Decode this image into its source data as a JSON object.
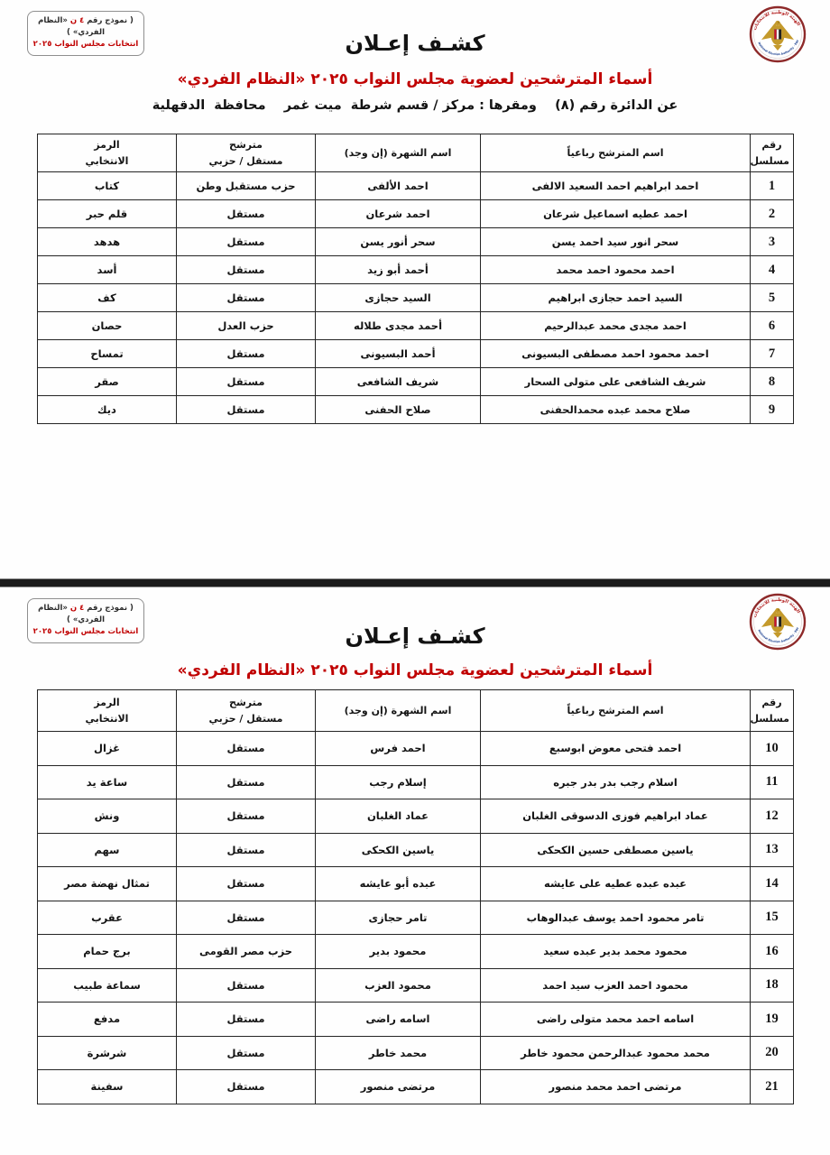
{
  "colors": {
    "accent_red": "#c00000",
    "table_border": "#242424",
    "divider": "#1b1b1b"
  },
  "header": {
    "form_box": {
      "line1_prefix": "( نموذج رقم ",
      "line1_red": "٤ ن",
      "line1_suffix": " «النظام الفردي» )",
      "line2": "انتخابات مجلس النواب ٢٠٢٥"
    },
    "logo_name": "national-elections-authority-emblem",
    "title": "كشـف إعـلان",
    "subtitle": "أسماء المترشحين لعضوية مجلس النواب ٢٠٢٥ «النظام الفردي»",
    "district_line": "عن الدائرة رقم (٨)    ومقرها : مركز / قسم شرطة  ميت غمر    محافظة  الدقهلية"
  },
  "table": {
    "columns": [
      "رقم\nمسلسل",
      "اسم المترشح رباعياً",
      "اسم الشهرة (إن وجد)",
      "مترشح\nمستقل / حزبي",
      "الرمز\nالانتخابي"
    ]
  },
  "pages": [
    {
      "rows": [
        {
          "serial": "1",
          "name": "احمد ابراهيم احمد السعيد الالفى",
          "known_as": "احمد الألفى",
          "affiliation": "حزب مستقبل وطن",
          "symbol": "كتاب"
        },
        {
          "serial": "2",
          "name": "احمد عطيه اسماعيل شرعان",
          "known_as": "احمد شرعان",
          "affiliation": "مستقل",
          "symbol": "قلم حبر"
        },
        {
          "serial": "3",
          "name": "سحر انور سيد احمد يسن",
          "known_as": "سحر أنور يسن",
          "affiliation": "مستقل",
          "symbol": "هدهد"
        },
        {
          "serial": "4",
          "name": "احمد محمود احمد محمد",
          "known_as": "أحمد أبو زيد",
          "affiliation": "مستقل",
          "symbol": "أسد"
        },
        {
          "serial": "5",
          "name": "السيد احمد حجازى ابراهيم",
          "known_as": "السيد حجازى",
          "affiliation": "مستقل",
          "symbol": "كف"
        },
        {
          "serial": "6",
          "name": "احمد مجدى محمد عبدالرحيم",
          "known_as": "أحمد مجدى طلاله",
          "affiliation": "حزب العدل",
          "symbol": "حصان"
        },
        {
          "serial": "7",
          "name": "احمد محمود احمد مصطفى البسيونى",
          "known_as": "أحمد البسيونى",
          "affiliation": "مستقل",
          "symbol": "تمساح"
        },
        {
          "serial": "8",
          "name": "شريف الشافعى على متولى السحار",
          "known_as": "شريف الشافعى",
          "affiliation": "مستقل",
          "symbol": "صقر"
        },
        {
          "serial": "9",
          "name": "صلاح محمد عبده محمدالحفنى",
          "known_as": "صلاح الحفنى",
          "affiliation": "مستقل",
          "symbol": "ديك"
        }
      ]
    },
    {
      "rows": [
        {
          "serial": "10",
          "name": "احمد فتحى معوض ابوسبع",
          "known_as": "احمد فرس",
          "affiliation": "مستقل",
          "symbol": "غزال"
        },
        {
          "serial": "11",
          "name": "اسلام رجب بدر بدر جبره",
          "known_as": "إسلام رجب",
          "affiliation": "مستقل",
          "symbol": "ساعة يد"
        },
        {
          "serial": "12",
          "name": "عماد ابراهيم فوزى الدسوقى الغلبان",
          "known_as": "عماد الغلبان",
          "affiliation": "مستقل",
          "symbol": "ونش"
        },
        {
          "serial": "13",
          "name": "ياسين مصطفى حسين الكحكى",
          "known_as": "ياسين الكحكى",
          "affiliation": "مستقل",
          "symbol": "سهم"
        },
        {
          "serial": "14",
          "name": "عبده عبده عطيه على عايشه",
          "known_as": "عبده أبو عايشه",
          "affiliation": "مستقل",
          "symbol": "تمثال نهضة مصر"
        },
        {
          "serial": "15",
          "name": "تامر محمود احمد يوسف عبدالوهاب",
          "known_as": "تامر حجازى",
          "affiliation": "مستقل",
          "symbol": "عقرب"
        },
        {
          "serial": "16",
          "name": "محمود محمد بدير عبده سعيد",
          "known_as": "محمود بدير",
          "affiliation": "حزب مصر القومى",
          "symbol": "برج حمام"
        },
        {
          "serial": "18",
          "name": "محمود احمد العزب سيد احمد",
          "known_as": "محمود العزب",
          "affiliation": "مستقل",
          "symbol": "سماعة طبيب"
        },
        {
          "serial": "19",
          "name": "اسامه احمد محمد متولى راضى",
          "known_as": "اسامه راضى",
          "affiliation": "مستقل",
          "symbol": "مدفع"
        },
        {
          "serial": "20",
          "name": "محمد محمود عبدالرحمن محمود خاطر",
          "known_as": "محمد خاطر",
          "affiliation": "مستقل",
          "symbol": "شرشرة"
        },
        {
          "serial": "21",
          "name": "مرتضى احمد محمد منصور",
          "known_as": "مرتضى منصور",
          "affiliation": "مستقل",
          "symbol": "سفينة"
        }
      ]
    }
  ]
}
